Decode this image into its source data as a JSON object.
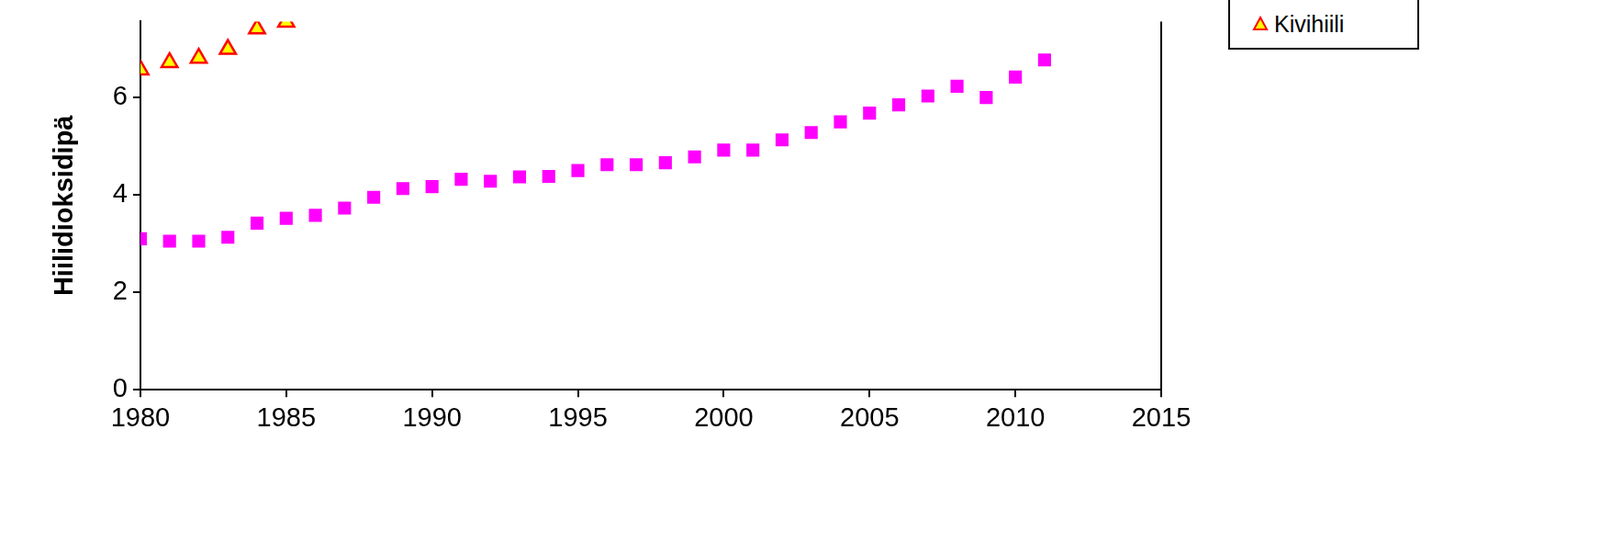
{
  "chart_data": {
    "type": "scatter",
    "y_label": "Hiilidioksidipä",
    "xlim": [
      1980,
      2015
    ],
    "xticks": [
      1980,
      1985,
      1990,
      1995,
      2000,
      2005,
      2010,
      2015
    ],
    "ylim": [
      0,
      7.56
    ],
    "yticks": [
      0,
      2,
      4,
      6
    ],
    "grid": false,
    "legend": "right",
    "series": [
      {
        "name": "Kivihiili",
        "color": "#ff0000",
        "marker": "triangle",
        "x": [
          1980,
          1981,
          1982,
          1983,
          1984,
          1985
        ],
        "values": [
          6.57,
          6.72,
          6.81,
          6.99,
          7.41,
          7.55
        ]
      },
      {
        "color": "#ff00ff",
        "marker": "square",
        "x": [
          1980,
          1981,
          1982,
          1983,
          1984,
          1985,
          1986,
          1987,
          1988,
          1989,
          1990,
          1991,
          1992,
          1993,
          1994,
          1995,
          1996,
          1997,
          1998,
          1999,
          2000,
          2001,
          2002,
          2003,
          2004,
          2005,
          2006,
          2007,
          2008,
          2009,
          2010,
          2011
        ],
        "values": [
          3.1,
          3.05,
          3.05,
          3.13,
          3.42,
          3.52,
          3.58,
          3.73,
          3.95,
          4.13,
          4.17,
          4.32,
          4.28,
          4.37,
          4.38,
          4.5,
          4.62,
          4.62,
          4.66,
          4.78,
          4.92,
          4.92,
          5.13,
          5.28,
          5.5,
          5.68,
          5.85,
          6.03,
          6.23,
          6.0,
          6.42,
          6.77
        ]
      }
    ]
  }
}
